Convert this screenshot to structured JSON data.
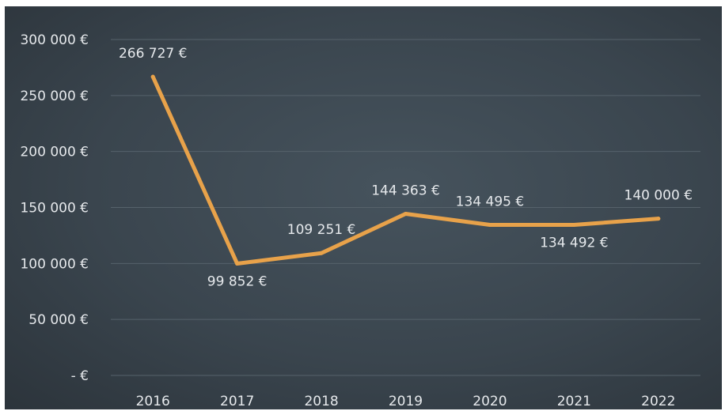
{
  "chart_data": {
    "type": "line",
    "categories": [
      "2016",
      "2017",
      "2018",
      "2019",
      "2020",
      "2021",
      "2022"
    ],
    "series": [
      {
        "values": [
          266727,
          99852,
          109251,
          144363,
          134495,
          134492,
          140000
        ],
        "labels": [
          "266 727 €",
          "99 852 €",
          "109 251 €",
          "144 363 €",
          "134 495 €",
          "134 492 €",
          "140 000 €"
        ]
      }
    ],
    "y_ticks": [
      0,
      50000,
      100000,
      150000,
      200000,
      250000,
      300000
    ],
    "y_tick_labels": [
      "-   €",
      "50 000 €",
      "100 000 €",
      "150 000 €",
      "200 000 €",
      "250 000 €",
      "300 000 €"
    ],
    "ylim": [
      0,
      300000
    ],
    "grid": true,
    "legend": "none",
    "line_color": "#e8a24a",
    "grid_color": "#56626b",
    "background_color": "#3b464f"
  }
}
